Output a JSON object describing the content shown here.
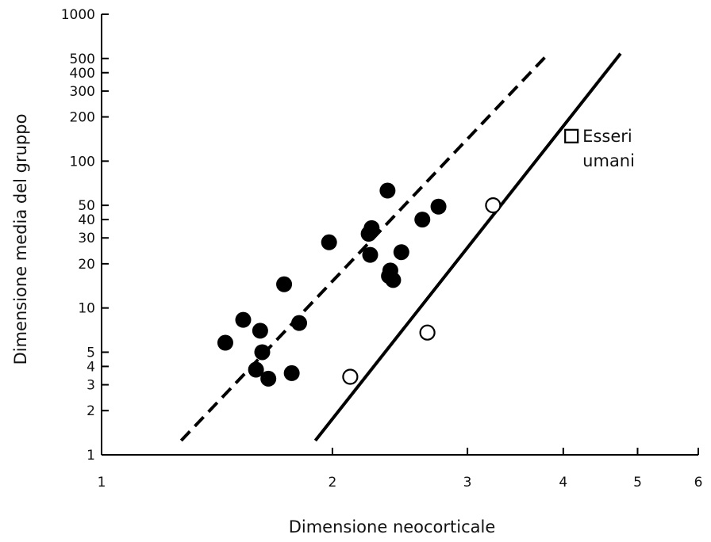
{
  "chart_data": {
    "type": "scatter",
    "title": "",
    "xlabel": "Dimensione neocorticale",
    "ylabel": "Dimensione media del gruppo",
    "x_scale": "log",
    "y_scale": "log",
    "xlim": [
      1,
      6
    ],
    "ylim": [
      1,
      1000
    ],
    "x_ticks": [
      1,
      2,
      3,
      4,
      5,
      6
    ],
    "x_tick_labels": [
      "1",
      "2",
      "3",
      "4",
      "5",
      "6"
    ],
    "y_ticks": [
      1,
      2,
      3,
      4,
      5,
      10,
      20,
      30,
      40,
      50,
      100,
      200,
      300,
      400,
      500,
      1000
    ],
    "y_tick_labels": [
      "1",
      "2",
      "3",
      "4",
      "5",
      "10",
      "20",
      "30",
      "40",
      "50",
      "100",
      "200",
      "300",
      "400",
      "500",
      "1000"
    ],
    "grid": false,
    "series": [
      {
        "marker": "filled-circle",
        "color": "#000000",
        "points": [
          {
            "x": 1.45,
            "y": 5.8
          },
          {
            "x": 1.53,
            "y": 8.3
          },
          {
            "x": 1.61,
            "y": 7.0
          },
          {
            "x": 1.62,
            "y": 5.0
          },
          {
            "x": 1.59,
            "y": 3.8
          },
          {
            "x": 1.65,
            "y": 3.3
          },
          {
            "x": 1.73,
            "y": 14.5
          },
          {
            "x": 1.77,
            "y": 3.6
          },
          {
            "x": 1.81,
            "y": 7.9
          },
          {
            "x": 1.98,
            "y": 28
          },
          {
            "x": 2.23,
            "y": 32
          },
          {
            "x": 2.25,
            "y": 35
          },
          {
            "x": 2.24,
            "y": 23
          },
          {
            "x": 2.36,
            "y": 63
          },
          {
            "x": 2.37,
            "y": 16.5
          },
          {
            "x": 2.4,
            "y": 15.5
          },
          {
            "x": 2.38,
            "y": 18
          },
          {
            "x": 2.46,
            "y": 24
          },
          {
            "x": 2.62,
            "y": 40
          },
          {
            "x": 2.75,
            "y": 49
          }
        ]
      },
      {
        "marker": "open-circle",
        "color": "#000000",
        "points": [
          {
            "x": 2.11,
            "y": 3.4
          },
          {
            "x": 2.66,
            "y": 6.8
          },
          {
            "x": 3.24,
            "y": 50
          }
        ]
      },
      {
        "marker": "open-square",
        "color": "#000000",
        "points": [
          {
            "x": 4.1,
            "y": 148
          }
        ]
      }
    ],
    "lines": [
      {
        "style": "dashed",
        "color": "#000000",
        "from": {
          "x": 1.27,
          "y": 1.25
        },
        "to": {
          "x": 3.8,
          "y": 520
        }
      },
      {
        "style": "solid",
        "color": "#000000",
        "from": {
          "x": 1.9,
          "y": 1.25
        },
        "to": {
          "x": 4.75,
          "y": 540
        }
      }
    ],
    "annotations": [
      {
        "text_lines": [
          "Esseri",
          "umani"
        ],
        "anchor": {
          "x": 4.3,
          "y": 148
        }
      }
    ]
  }
}
